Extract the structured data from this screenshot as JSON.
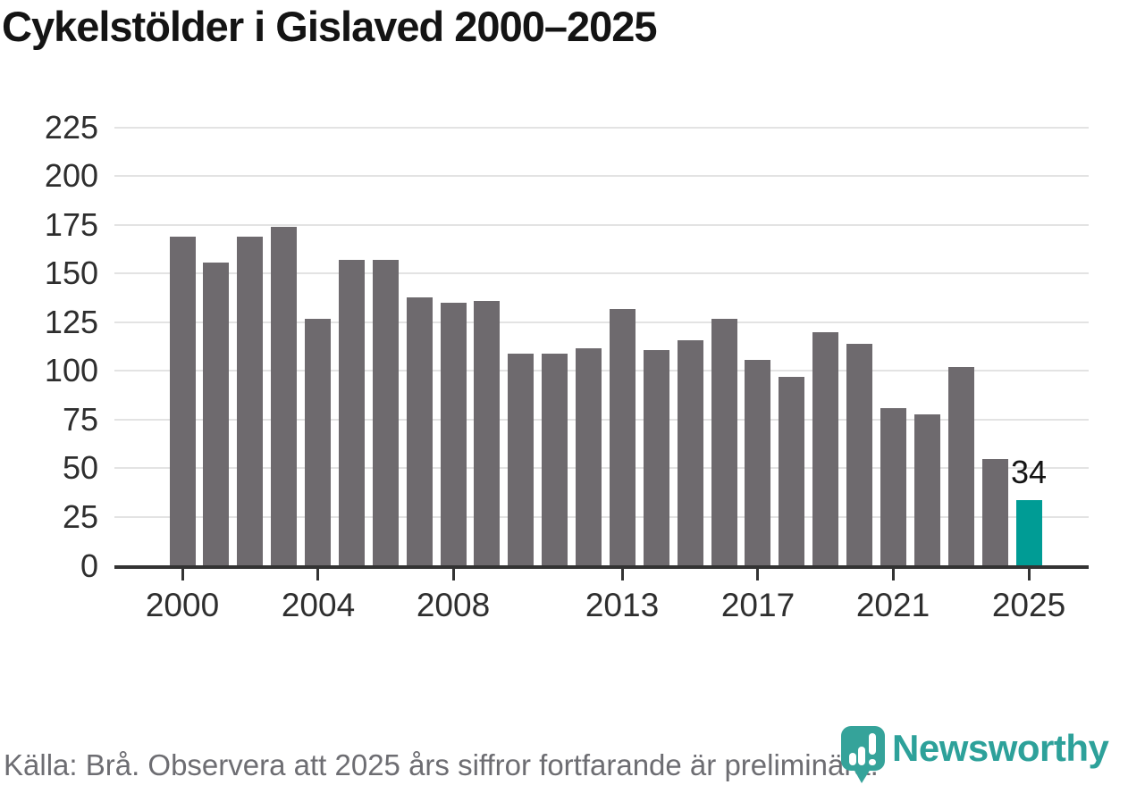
{
  "title": "Cykelstölder i Gislaved 2000–2025",
  "chart_data": {
    "type": "bar",
    "title": "Cykelstölder i Gislaved 2000–2025",
    "series_name": "Cykelstölder",
    "x": [
      2000,
      2001,
      2002,
      2003,
      2004,
      2005,
      2006,
      2007,
      2008,
      2009,
      2010,
      2011,
      2012,
      2013,
      2014,
      2015,
      2016,
      2017,
      2018,
      2019,
      2020,
      2021,
      2022,
      2023,
      2024,
      2025
    ],
    "values": [
      169,
      156,
      169,
      174,
      127,
      157,
      157,
      138,
      135,
      136,
      109,
      109,
      112,
      132,
      111,
      116,
      127,
      106,
      97,
      120,
      114,
      81,
      78,
      102,
      55,
      34
    ],
    "y_ticks": [
      0,
      25,
      50,
      75,
      100,
      125,
      150,
      175,
      200,
      225
    ],
    "ylim": [
      0,
      235
    ],
    "x_tick_labels": [
      "2000",
      "2004",
      "2008",
      "2013",
      "2017",
      "2021",
      "2025"
    ],
    "grid": "horizontal",
    "legend": "none",
    "highlight": {
      "year": 2025,
      "value": 34,
      "label": "34"
    }
  },
  "colors": {
    "bar_default": "#6e6a6e",
    "bar_highlight": "#009c95",
    "axis": "#333333",
    "gridline": "#e3e3e3",
    "tick_text": "#2e2e2e",
    "title_text": "#141414",
    "footer_text": "#6d6d72",
    "brand_teal": "#2da19a",
    "logo_fill": "#35a39a"
  },
  "footer": {
    "source_note": "Källa: Brå. Observera att 2025 års siffror fortfarande är preliminära."
  },
  "branding": {
    "logo_text": "Newsworthy"
  }
}
